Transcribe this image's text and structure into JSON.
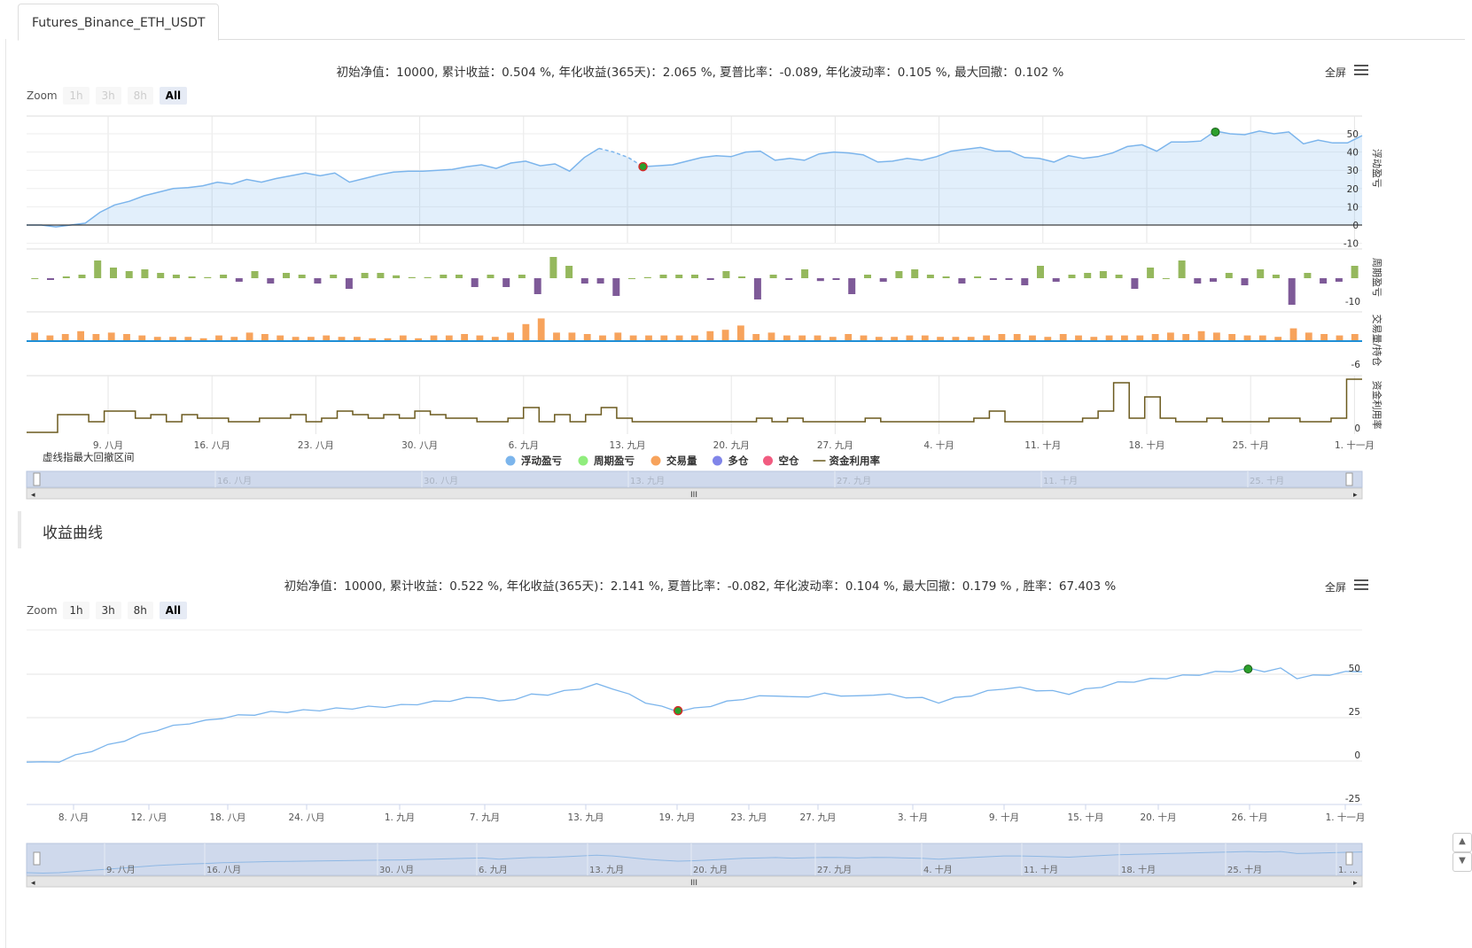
{
  "tab": {
    "label": "Futures_Binance_ETH_USDT"
  },
  "section2_title": "收益曲线",
  "fullscreen_label": "全屏",
  "zoom": {
    "label": "Zoom",
    "buttons": [
      "1h",
      "3h",
      "8h",
      "All"
    ],
    "selected": "All"
  },
  "chart1": {
    "stats_text": "初始净值：10000, 累计收益：0.504 %, 年化收益(365天)：2.065 %, 夏普比率：-0.089, 年化波动率：0.105 %, 最大回撤：0.102 %",
    "zoom_disabled": [
      "1h",
      "3h",
      "8h"
    ],
    "note": "虚线指最大回撤区间",
    "legend": [
      {
        "name": "浮动盈亏",
        "color": "#7cb5ec",
        "kind": "dot"
      },
      {
        "name": "周期盈亏",
        "color": "#90ed7d",
        "kind": "dot"
      },
      {
        "name": "交易量",
        "color": "#f7a35c",
        "kind": "dot"
      },
      {
        "name": "多仓",
        "color": "#8085e9",
        "kind": "dot"
      },
      {
        "name": "空仓",
        "color": "#f15c80",
        "kind": "dot"
      },
      {
        "name": "资金利用率",
        "color": "#6b5a1e",
        "kind": "line"
      }
    ],
    "pane_titles": [
      "浮动盈亏",
      "周期盈亏",
      "交易量/持仓",
      "资金利用率"
    ],
    "x_ticks": [
      "9. 八月",
      "16. 八月",
      "23. 八月",
      "30. 八月",
      "6. 九月",
      "13. 九月",
      "20. 九月",
      "27. 九月",
      "4. 十月",
      "11. 十月",
      "18. 十月",
      "25. 十月",
      "1. 十一月"
    ],
    "navigator_ticks": [
      "16. 八月",
      "30. 八月",
      "13. 九月",
      "27. 九月",
      "11. 十月",
      "25. 十月"
    ],
    "chart_data": {
      "type": "area",
      "y_ticks": [
        "50",
        "40",
        "30",
        "20",
        "10",
        "0",
        "-10"
      ],
      "ylim": [
        -10,
        55
      ],
      "float_pnl": [
        0,
        0,
        -1,
        0,
        1,
        7,
        11,
        13,
        16,
        18,
        20,
        20.5,
        21.5,
        23.5,
        22.5,
        25,
        23.5,
        25.5,
        27,
        28.5,
        27,
        28.5,
        23.5,
        25.5,
        27.5,
        29,
        29.5,
        29.5,
        30,
        30.5,
        32,
        33,
        31,
        34,
        35,
        32.5,
        33.5,
        29.5,
        37,
        42,
        40,
        37,
        32,
        32.5,
        33,
        35,
        37,
        38,
        37.5,
        40,
        40.5,
        35.5,
        36.5,
        35.5,
        39,
        40,
        39.5,
        38.5,
        34.5,
        35,
        36.5,
        35.5,
        37.5,
        40.5,
        41.5,
        42.5,
        40.5,
        40.5,
        37,
        36.5,
        34.5,
        38,
        36.5,
        37.5,
        39.5,
        43,
        44,
        40.5,
        45.5,
        45.5,
        46,
        51.5,
        50,
        49.5,
        51.5,
        50,
        51,
        44.5,
        46.5,
        45,
        45,
        49
      ],
      "drawdown_from_index": 39,
      "drawdown_to_index": 42,
      "drawdown_value_low": 32,
      "drawdown_value_high": 51,
      "period_pnl": [
        0,
        -0.5,
        0.5,
        1,
        5,
        3,
        2,
        2.5,
        1.5,
        1,
        0.5,
        0.3,
        1,
        -1,
        2,
        -1.5,
        1.5,
        1,
        -1.5,
        1,
        -3,
        1.5,
        1.5,
        0.8,
        0.3,
        0.3,
        1,
        1,
        -2.5,
        1,
        -2.5,
        1,
        -4.5,
        6,
        3.5,
        -1.5,
        -1.5,
        -5,
        0,
        0.3,
        1,
        1,
        1,
        -0.5,
        2,
        0.5,
        -6,
        1,
        -0.5,
        2.5,
        -0.8,
        -0.5,
        -4.5,
        1,
        -1,
        2,
        2.5,
        1,
        0.5,
        -1.5,
        0.5,
        -0.5,
        -0.5,
        -2,
        3.5,
        -1,
        1,
        1.5,
        2,
        1,
        -3,
        3,
        0,
        5,
        -1.5,
        -1,
        1.5,
        -2,
        2.5,
        1,
        -7.5,
        1.5,
        -1.5,
        -1,
        3.5
      ],
      "volume": [
        3,
        2,
        2.5,
        3.5,
        2.5,
        3,
        2.5,
        2,
        1.5,
        1.5,
        1.5,
        1,
        2,
        1.5,
        3,
        2.5,
        2,
        1.5,
        1.5,
        2,
        1.5,
        1.5,
        1,
        1,
        2,
        1,
        2,
        2,
        2.5,
        2,
        1.5,
        3,
        6,
        8,
        3,
        3,
        2.5,
        2,
        3,
        2,
        2,
        2,
        2,
        2,
        3.5,
        4,
        5.5,
        2.5,
        3,
        2,
        2,
        2,
        1.5,
        2.5,
        2,
        1.5,
        1.5,
        2,
        2,
        1.5,
        1.5,
        1.5,
        2,
        2.5,
        2.5,
        2,
        1.5,
        2.5,
        2,
        1.5,
        2,
        2,
        2,
        2.5,
        3,
        2.5,
        3.5,
        3,
        2.5,
        2,
        2,
        1.5,
        4.5,
        3,
        2.5,
        2,
        2.5
      ],
      "volume_axis_label": "-6",
      "util_axis_label": "0",
      "util_rate": [
        0,
        0,
        10,
        10,
        6,
        12,
        12,
        8,
        10,
        6,
        10,
        8,
        8,
        6,
        6,
        8,
        8,
        10,
        6,
        8,
        12,
        10,
        8,
        10,
        8,
        12,
        10,
        8,
        8,
        6,
        6,
        8,
        14,
        6,
        10,
        6,
        10,
        14,
        8,
        6,
        6,
        6,
        6,
        6,
        6,
        6,
        6,
        8,
        6,
        8,
        6,
        6,
        6,
        6,
        8,
        6,
        6,
        6,
        6,
        6,
        6,
        8,
        12,
        6,
        6,
        6,
        6,
        6,
        8,
        12,
        28,
        8,
        20,
        8,
        6,
        6,
        8,
        6,
        6,
        6,
        8,
        8,
        6,
        6,
        8,
        30
      ]
    }
  },
  "chart2": {
    "stats_text": "初始净值：10000, 累计收益：0.522 %, 年化收益(365天)：2.141 %, 夏普比率：-0.082, 年化波动率：0.104 %, 最大回撤：0.179 % , 胜率：67.403 %",
    "x_ticks": [
      "8. 八月",
      "12. 八月",
      "18. 八月",
      "24. 八月",
      "1. 九月",
      "7. 九月",
      "13. 九月",
      "19. 九月",
      "23. 九月",
      "27. 九月",
      "3. 十月",
      "9. 十月",
      "15. 十月",
      "20. 十月",
      "26. 十月",
      "1. 十一月"
    ],
    "navigator_ticks": [
      "9. 八月",
      "16. 八月",
      "30. 八月",
      "6. 九月",
      "13. 九月",
      "20. 九月",
      "27. 九月",
      "4. 十月",
      "11. 十月",
      "18. 十月",
      "25. 十月",
      "1. ..."
    ],
    "chart_data": {
      "type": "line",
      "y_ticks": [
        "50",
        "25",
        "0",
        "-25"
      ],
      "ylim": [
        -25,
        60
      ],
      "equity_pts": [
        0,
        -1,
        0,
        3,
        6,
        9,
        12,
        15,
        18,
        20,
        22,
        23,
        25,
        26,
        27,
        28,
        28.5,
        29,
        29.5,
        30,
        30.5,
        31,
        31.5,
        32,
        33,
        34,
        35,
        36,
        37,
        34,
        36,
        38,
        38.5,
        40,
        42,
        44,
        42,
        38,
        34,
        31,
        29,
        30,
        32,
        34,
        36,
        37,
        38,
        36.5,
        37.5,
        38.5,
        38,
        37,
        38.5,
        38,
        37,
        36,
        34,
        36,
        38,
        40,
        42,
        42,
        41,
        40,
        39,
        41,
        43,
        45,
        46,
        47,
        48,
        49,
        50,
        51,
        52,
        53,
        52,
        53,
        48,
        49,
        50,
        51,
        52
      ]
    }
  }
}
